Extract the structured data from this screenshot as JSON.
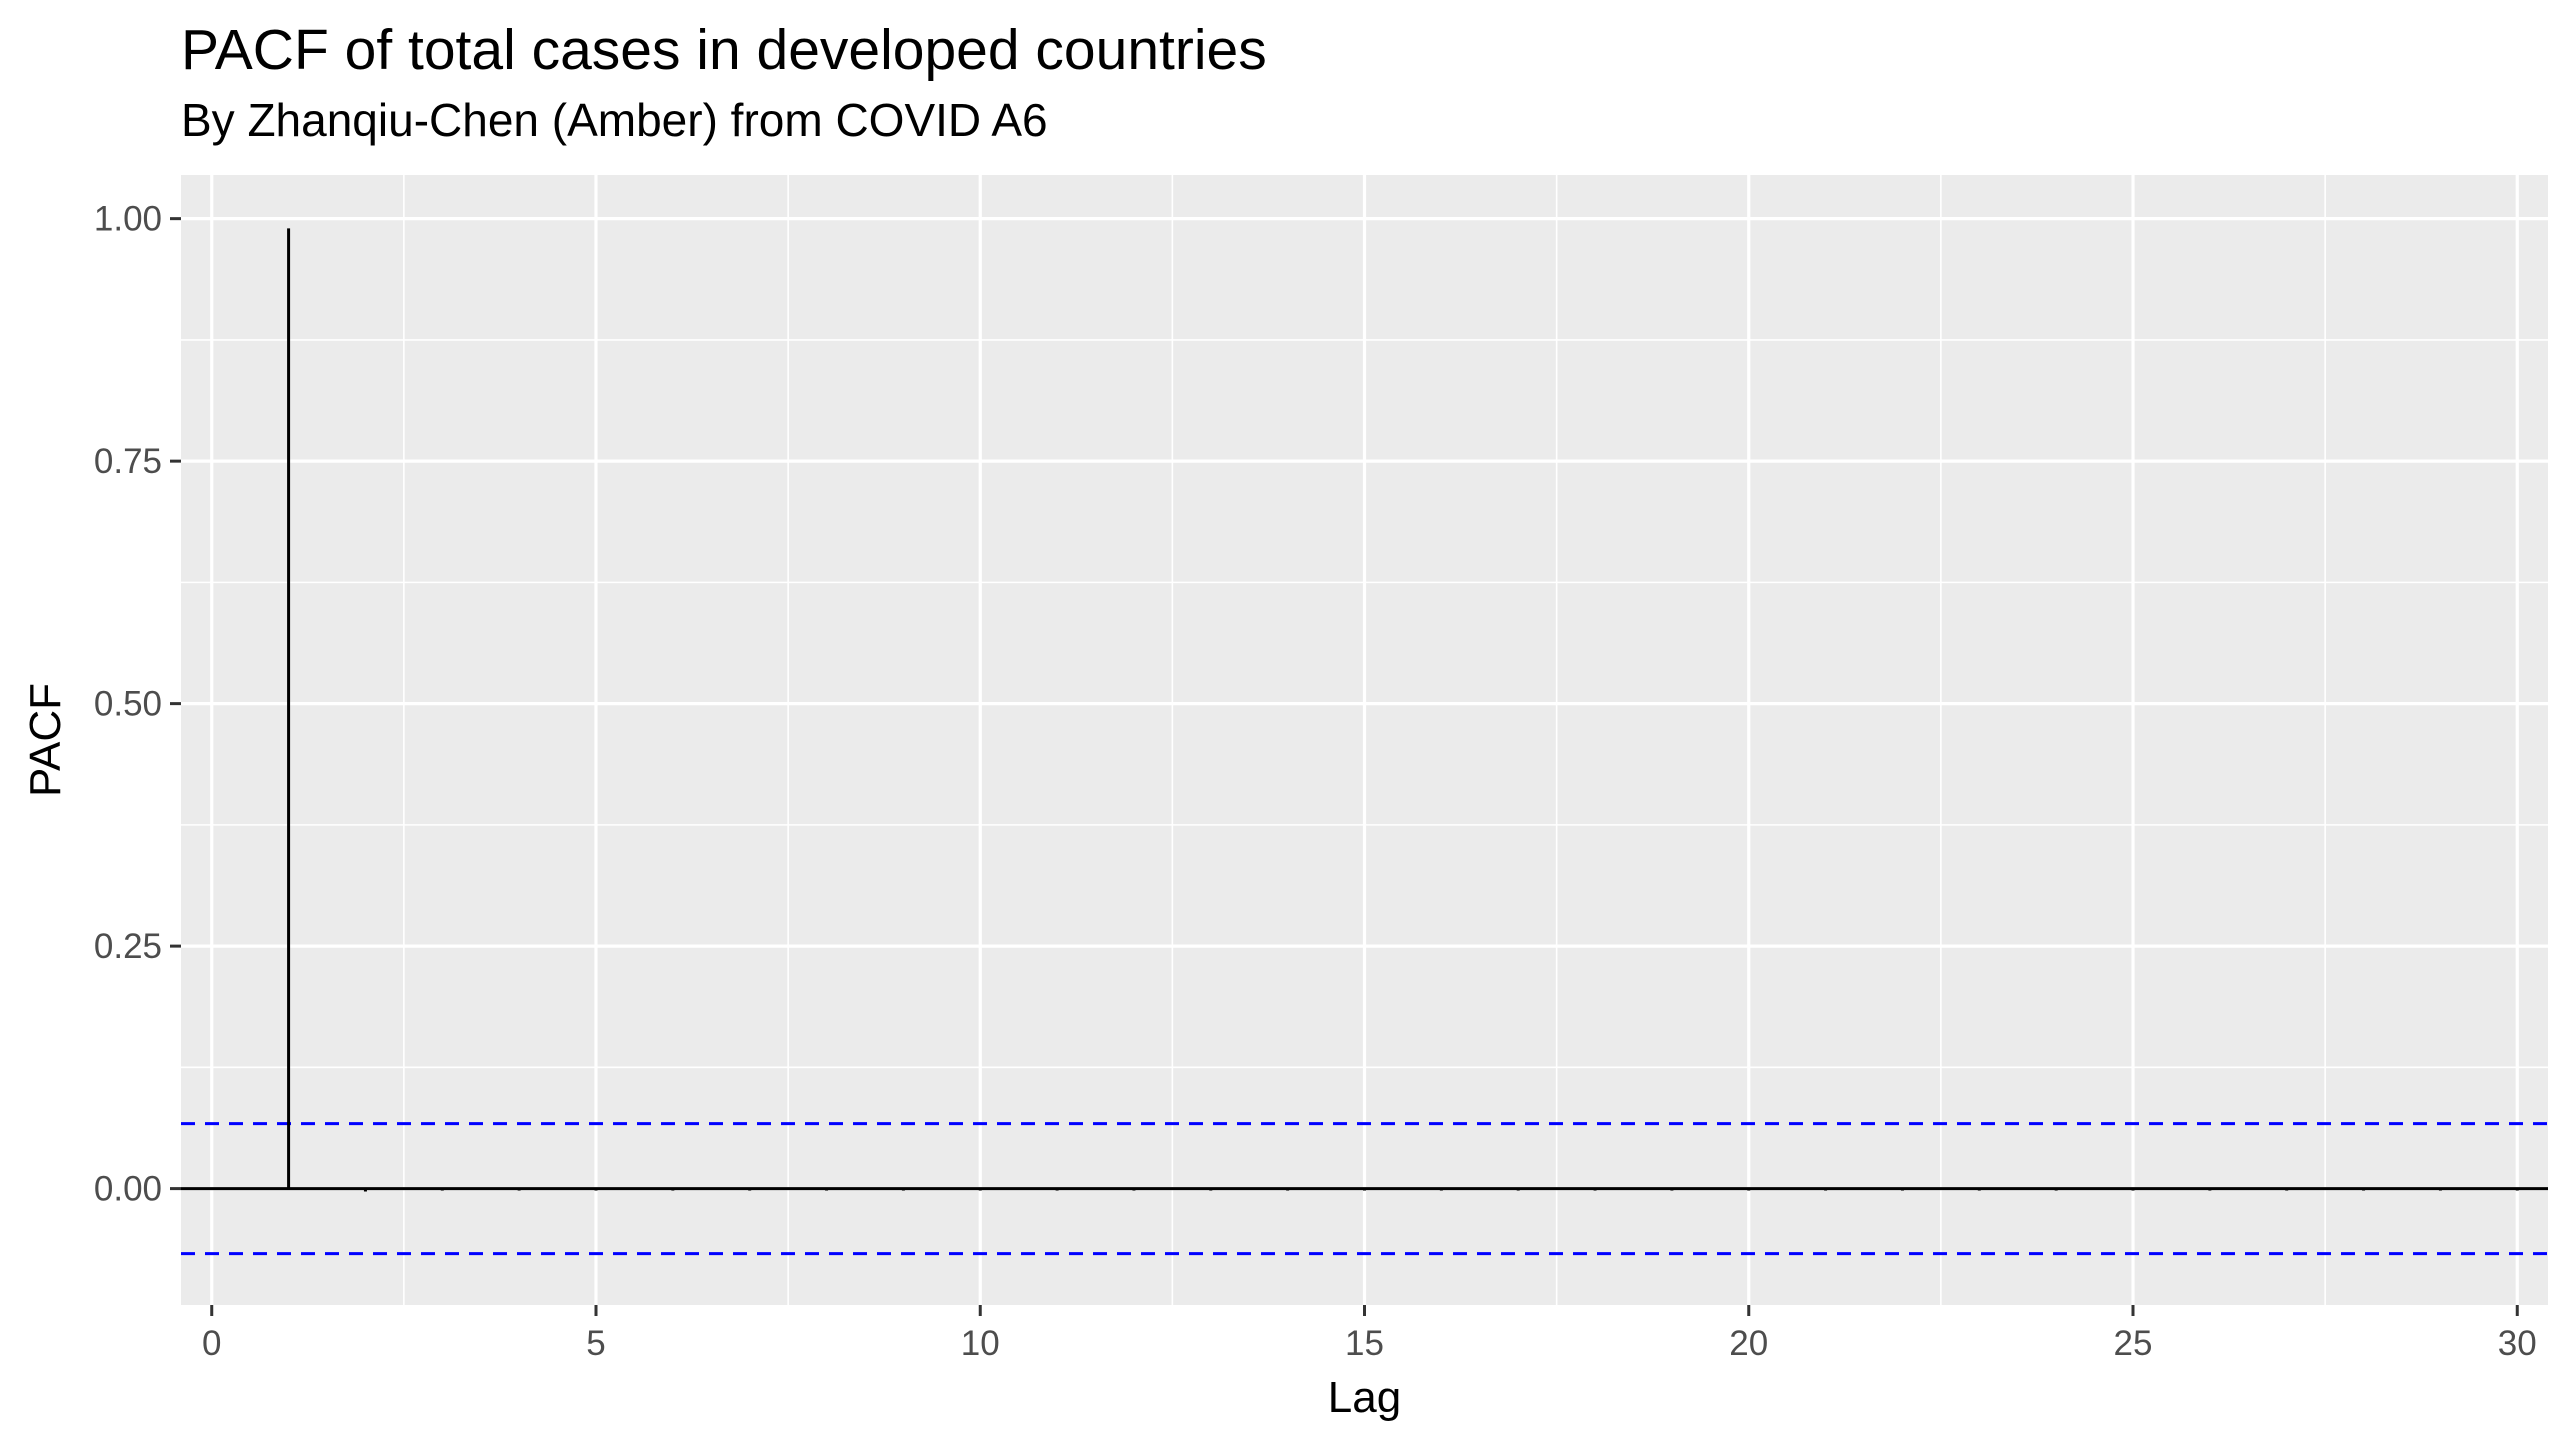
{
  "chart_data": {
    "type": "bar",
    "title": "PACF of total cases in developed countries",
    "subtitle": "By Zhanqiu-Chen (Amber) from COVID A6",
    "xlabel": "Lag",
    "ylabel": "PACF",
    "x_ticks": [
      "0",
      "5",
      "10",
      "15",
      "20",
      "25",
      "30"
    ],
    "y_ticks": [
      "0.00",
      "0.25",
      "0.50",
      "0.75",
      "1.00"
    ],
    "xlim": [
      -0.4,
      30.4
    ],
    "ylim": [
      -0.12,
      1.045
    ],
    "lags": [
      1,
      2,
      3,
      4,
      5,
      6,
      7,
      8,
      9,
      10,
      11,
      12,
      13,
      14,
      15,
      16,
      17,
      18,
      19,
      20,
      21,
      22,
      23,
      24,
      25,
      26,
      27,
      28,
      29,
      30
    ],
    "values": [
      0.99,
      -0.003,
      -0.002,
      -0.002,
      -0.002,
      -0.002,
      -0.002,
      -0.002,
      -0.002,
      -0.002,
      -0.002,
      -0.002,
      -0.002,
      -0.002,
      -0.002,
      -0.002,
      -0.002,
      -0.002,
      -0.002,
      -0.002,
      -0.002,
      -0.002,
      -0.002,
      -0.002,
      -0.002,
      -0.002,
      -0.002,
      -0.002,
      -0.002,
      -0.002
    ],
    "confidence_bounds": [
      0.067,
      -0.067
    ],
    "grid": true,
    "colors": {
      "panel_background": "#ebebeb",
      "grid": "#ffffff",
      "bars": "#000000",
      "confidence_line": "#0000ff",
      "tick_text": "#4d4d4d"
    }
  }
}
